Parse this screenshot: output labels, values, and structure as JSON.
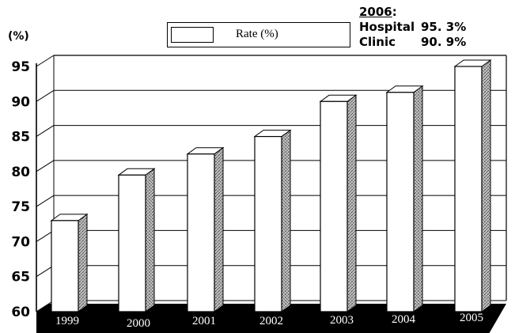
{
  "chart_data": {
    "type": "bar",
    "title": "",
    "ylabel": "(%)",
    "xlabel": "",
    "categories": [
      "1999",
      "2000",
      "2001",
      "2002",
      "2003",
      "2004",
      "2005"
    ],
    "series": [
      {
        "name": "Rate (%)",
        "values": [
          73,
          79.5,
          82.5,
          85,
          90,
          91.3,
          95
        ]
      }
    ],
    "ylim": [
      60,
      95
    ],
    "yticks": [
      "60",
      "65",
      "70",
      "75",
      "80",
      "85",
      "90",
      "95"
    ],
    "grid": true,
    "legend": "top-center",
    "style": "3d",
    "colors": {
      "bar_front": "#ffffff",
      "bar_side": "#9a9a9a",
      "floor": "#000000",
      "axis_text": "#000000"
    }
  },
  "note": {
    "year": "2006",
    "colon": ":",
    "rows": [
      {
        "name": "Hospital",
        "value": "95. 3%"
      },
      {
        "name": "Clinic",
        "value": "90. 9%"
      }
    ]
  }
}
